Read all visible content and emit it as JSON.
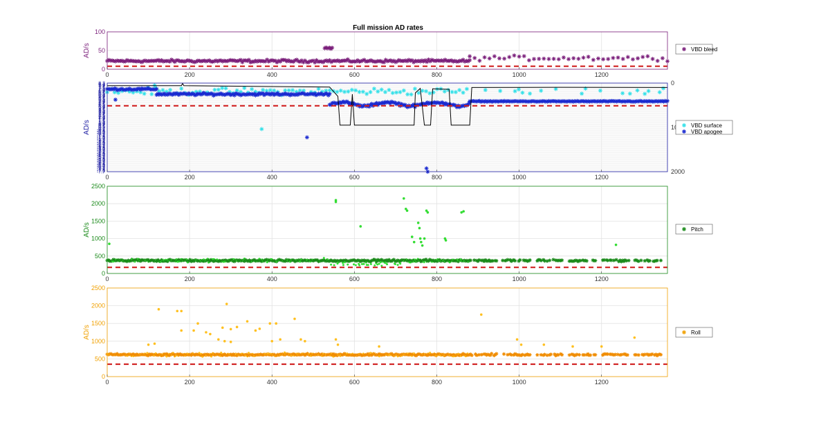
{
  "figure": {
    "title": "Full mission AD rates"
  },
  "chart_data": [
    {
      "id": "bleed",
      "type": "scatter",
      "title": "Full mission AD rates",
      "ylabel": "AD/s",
      "xlim": [
        0,
        1360
      ],
      "ylim": [
        0,
        100
      ],
      "xticks": [
        0,
        200,
        400,
        600,
        800,
        1000,
        1200
      ],
      "yticks": [
        0,
        50,
        100
      ],
      "color": "#7b1f7b",
      "grid": true,
      "legend": {
        "label": "VBD bleed",
        "marker": "*",
        "color": "#7b1f7b",
        "placement": "right"
      },
      "threshold": 8,
      "series": [
        {
          "marker": "*",
          "color": "#7b1f7b",
          "x_start": 0,
          "x_end": 880,
          "level": 22,
          "jitter": 5,
          "step": 4
        },
        {
          "marker": "*",
          "color": "#7b1f7b",
          "x_start": 880,
          "x_end": 1360,
          "level": 30,
          "jitter": 9,
          "step": 12
        },
        {
          "marker": "*",
          "color": "#7b1f7b",
          "x_start": 528,
          "x_end": 548,
          "level": 57,
          "jitter": 3,
          "step": 3
        }
      ]
    },
    {
      "id": "vbd",
      "type": "scatter",
      "ylabel": "AD/s",
      "xlim": [
        0,
        1360
      ],
      "ylim": [
        -7.7,
        8.3
      ],
      "xticks": [
        0,
        200,
        400,
        600,
        800,
        1000,
        1200
      ],
      "yticks": [
        8.3,
        8.1,
        7.9,
        7.7,
        7.5,
        7.3,
        7.1,
        6.9,
        6.7,
        6.5,
        6.3,
        6.1,
        5.9,
        5.7,
        5.5,
        5.3,
        5.1,
        4.9,
        4.7,
        4.5,
        4.3,
        4.1,
        3.9,
        3.7,
        3.5,
        3.3,
        3.1,
        2.9,
        2.7,
        2.5,
        2.3,
        2.1,
        1.9,
        1.7,
        1.5,
        1.3,
        1.1,
        0.9,
        0.7,
        0.5,
        0.3,
        0.1,
        -0.1,
        -0.3,
        -0.5,
        -0.7,
        -0.9,
        -1.1,
        -1.3,
        -1.5,
        -1.7,
        -1.9,
        -2.1,
        -2.3,
        -2.5,
        -2.7,
        -2.9,
        -3.1,
        -3.3,
        -3.5,
        -3.7,
        -3.9,
        -4.1,
        -4.3,
        -4.5,
        -4.7,
        -4.9,
        -5.1,
        -5.3,
        -5.5,
        -5.7,
        -5.9,
        -6.1,
        -6.3,
        -6.5,
        -6.7,
        -6.9,
        -7.1,
        -7.3,
        -7.5,
        -7.7
      ],
      "ytick_labels_top": [
        "8.3",
        "8",
        "7.7"
      ],
      "ytick_labels_mid": [
        "1.7",
        "1.1",
        "0.5",
        "-0.1"
      ],
      "ytick_labels_bottom": [
        "-7.1",
        "-7.7"
      ],
      "y2ticks": [
        "0",
        "10",
        "2000"
      ],
      "color": "#1a1aa0",
      "grid": true,
      "legend": {
        "placement": "right",
        "entries": [
          {
            "label": "VBD surface",
            "marker": "*",
            "color": "#33e0e8"
          },
          {
            "label": "VBD apogee",
            "marker": "*",
            "color": "#1a2ad0"
          }
        ]
      },
      "threshold": 4.2,
      "surface": {
        "x_start": 0,
        "x_end": 1360,
        "level": 6.8,
        "jitter": 0.9
      },
      "apogee_segments": [
        {
          "x_start": 0,
          "x_end": 120,
          "level": 7.2,
          "jitter": 0.25
        },
        {
          "x_start": 120,
          "x_end": 540,
          "level": 6.3,
          "jitter": 0.3
        },
        {
          "x_start": 540,
          "x_end": 880,
          "level": 4.5,
          "jitter": 0.35
        },
        {
          "x_start": 880,
          "x_end": 1360,
          "level": 5.0,
          "jitter": 0.1
        }
      ],
      "apogee_outliers": [
        [
          485,
          -1.5
        ],
        [
          775,
          -7.1
        ],
        [
          778,
          -7.7
        ],
        [
          20,
          5.3
        ]
      ],
      "surface_outliers": [
        [
          375,
          0.0
        ],
        [
          115,
          7.9
        ]
      ],
      "depth_line": {
        "color": "#000000",
        "y2lim": [
          0,
          2000
        ],
        "points": [
          [
            0,
            60
          ],
          [
            180,
            60
          ],
          [
            183,
            10
          ],
          [
            186,
            60
          ],
          [
            540,
            90
          ],
          [
            560,
            300
          ],
          [
            565,
            950
          ],
          [
            590,
            950
          ],
          [
            595,
            250
          ],
          [
            600,
            950
          ],
          [
            640,
            950
          ],
          [
            660,
            950
          ],
          [
            700,
            950
          ],
          [
            745,
            950
          ],
          [
            748,
            220
          ],
          [
            760,
            120
          ],
          [
            770,
            950
          ],
          [
            785,
            950
          ],
          [
            790,
            130
          ],
          [
            830,
            140
          ],
          [
            835,
            950
          ],
          [
            880,
            950
          ],
          [
            885,
            100
          ],
          [
            1100,
            95
          ],
          [
            1360,
            100
          ]
        ]
      }
    },
    {
      "id": "pitch",
      "type": "scatter",
      "ylabel": "AD/s",
      "xlim": [
        0,
        1360
      ],
      "ylim": [
        0,
        2500
      ],
      "xticks": [
        0,
        200,
        400,
        600,
        800,
        1000,
        1200
      ],
      "yticks": [
        0,
        500,
        1000,
        1500,
        2000,
        2500
      ],
      "color": "#1a8a1a",
      "grid": true,
      "legend": {
        "label": "Pitch",
        "marker": "*",
        "color": "#1a8a1a",
        "placement": "right"
      },
      "threshold": 175,
      "base_level": 370,
      "base_jitter": 40,
      "outliers": [
        [
          555,
          2100
        ],
        [
          555,
          2050
        ],
        [
          615,
          1350
        ],
        [
          720,
          2150
        ],
        [
          725,
          1850
        ],
        [
          728,
          1800
        ],
        [
          755,
          1450
        ],
        [
          758,
          1300
        ],
        [
          760,
          1000
        ],
        [
          762,
          900
        ],
        [
          765,
          800
        ],
        [
          770,
          1000
        ],
        [
          775,
          1800
        ],
        [
          778,
          1750
        ],
        [
          820,
          1000
        ],
        [
          822,
          950
        ],
        [
          860,
          1750
        ],
        [
          865,
          1780
        ],
        [
          1235,
          820
        ],
        [
          5,
          850
        ],
        [
          740,
          1050
        ],
        [
          745,
          900
        ]
      ]
    },
    {
      "id": "roll",
      "type": "scatter",
      "ylabel": "AD/s",
      "xlim": [
        0,
        1360
      ],
      "ylim": [
        0,
        2500
      ],
      "xticks": [
        0,
        200,
        400,
        600,
        800,
        1000,
        1200
      ],
      "yticks": [
        0,
        500,
        1000,
        1500,
        2000,
        2500
      ],
      "color": "#f0a000",
      "grid": true,
      "legend": {
        "label": "Roll",
        "marker": "*",
        "color": "#f0a000",
        "placement": "right"
      },
      "threshold": 350,
      "base_level": 620,
      "base_jitter": 35,
      "outliers": [
        [
          125,
          1900
        ],
        [
          170,
          1850
        ],
        [
          180,
          1850
        ],
        [
          290,
          2050
        ],
        [
          455,
          1630
        ],
        [
          340,
          1560
        ],
        [
          395,
          1500
        ],
        [
          410,
          1500
        ],
        [
          360,
          1300
        ],
        [
          370,
          1350
        ],
        [
          240,
          1250
        ],
        [
          250,
          1200
        ],
        [
          210,
          1300
        ],
        [
          220,
          1500
        ],
        [
          280,
          1380
        ],
        [
          300,
          1340
        ],
        [
          315,
          1400
        ],
        [
          270,
          1050
        ],
        [
          285,
          1000
        ],
        [
          300,
          980
        ],
        [
          180,
          1300
        ],
        [
          100,
          900
        ],
        [
          115,
          930
        ],
        [
          400,
          1000
        ],
        [
          420,
          1050
        ],
        [
          470,
          1050
        ],
        [
          480,
          1000
        ],
        [
          555,
          1050
        ],
        [
          560,
          900
        ],
        [
          908,
          1750
        ],
        [
          995,
          1050
        ],
        [
          1005,
          900
        ],
        [
          1280,
          1100
        ],
        [
          1200,
          850
        ],
        [
          1060,
          900
        ],
        [
          1130,
          850
        ],
        [
          660,
          850
        ]
      ]
    }
  ]
}
